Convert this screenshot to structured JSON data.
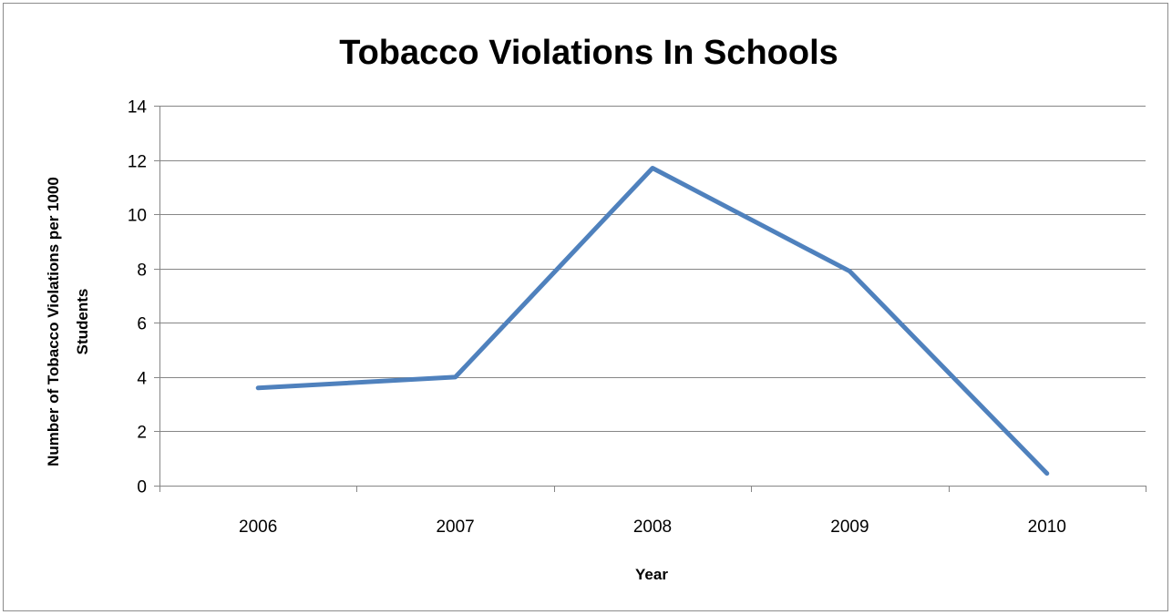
{
  "chart_data": {
    "type": "line",
    "title": "Tobacco Violations In Schools",
    "xlabel": "Year",
    "ylabel_lines": [
      "Number of Tobacco Violations per 1000",
      "Students"
    ],
    "categories": [
      "2006",
      "2007",
      "2008",
      "2009",
      "2010"
    ],
    "series": [
      {
        "values": [
          3.6,
          4.0,
          11.7,
          7.9,
          0.45
        ]
      }
    ],
    "ylim": [
      0,
      14
    ],
    "yticks": [
      0,
      2,
      4,
      6,
      8,
      10,
      12,
      14
    ],
    "grid": true,
    "line_color": "#4f81bd",
    "gridline_color": "#868686"
  }
}
